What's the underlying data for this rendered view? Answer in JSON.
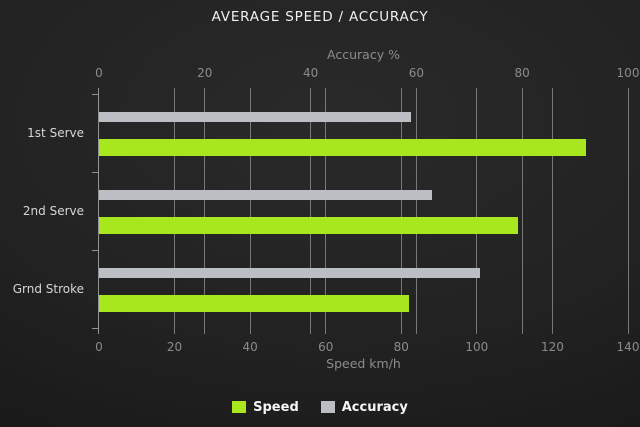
{
  "colors": {
    "speed": "#a8e61d",
    "accuracy": "#bbbfc3",
    "grid": "#787878",
    "axis": "#939393",
    "background": "#1e1e1e"
  },
  "chart_data": {
    "type": "bar",
    "orientation": "horizontal",
    "title": "AVERAGE SPEED / ACCURACY",
    "categories": [
      "1st Serve",
      "2nd Serve",
      "Grnd Stroke"
    ],
    "series": [
      {
        "name": "Speed",
        "axis": "bottom",
        "color_key": "speed",
        "values": [
          129,
          111,
          82
        ]
      },
      {
        "name": "Accuracy",
        "axis": "top",
        "color_key": "accuracy",
        "values": [
          59,
          63,
          72
        ]
      }
    ],
    "axes": {
      "top": {
        "label": "Accuracy %",
        "min": 0,
        "max": 100,
        "ticks": [
          0,
          20,
          40,
          60,
          80,
          100
        ]
      },
      "bottom": {
        "label": "Speed km/h",
        "min": 0,
        "max": 140,
        "ticks": [
          0,
          20,
          40,
          60,
          80,
          100,
          120,
          140
        ]
      }
    },
    "grid": true,
    "legend_position": "bottom"
  }
}
